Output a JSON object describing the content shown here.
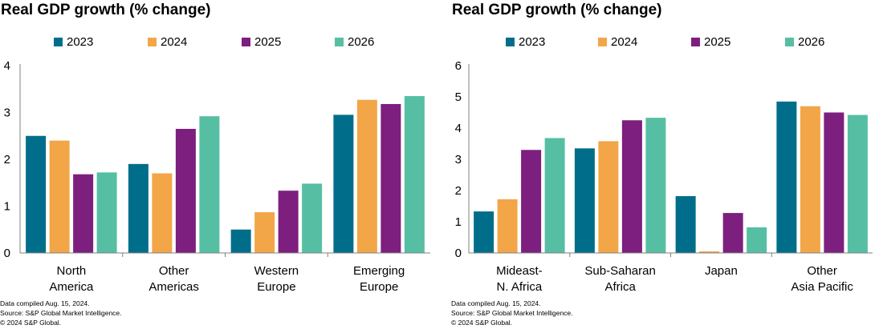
{
  "charts": [
    {
      "title": "Real GDP growth (% change)",
      "notes": [
        "Data compiled Aug. 15, 2024.",
        "Source: S&P Global Market Intelligence.",
        "© 2024 S&P Global."
      ]
    },
    {
      "title": "Real GDP growth (% change)",
      "notes": [
        "Data compiled Aug. 15, 2024.",
        "Source: S&P Global Market Intelligence.",
        "© 2024 S&P Global."
      ]
    }
  ],
  "chart_data": [
    {
      "type": "bar",
      "title": "Real GDP growth (% change)",
      "categories": [
        [
          "North",
          "America"
        ],
        [
          "Other",
          "Americas"
        ],
        [
          "Western",
          "Europe"
        ],
        [
          "Emerging",
          "Europe"
        ]
      ],
      "series": [
        {
          "name": "2023",
          "color": "#006e8a",
          "values": [
            2.5,
            1.9,
            0.5,
            2.95
          ]
        },
        {
          "name": "2024",
          "color": "#f2a648",
          "values": [
            2.4,
            1.7,
            0.87,
            3.27
          ]
        },
        {
          "name": "2025",
          "color": "#7d1f7e",
          "values": [
            1.68,
            2.65,
            1.33,
            3.18
          ]
        },
        {
          "name": "2026",
          "color": "#56bfa3",
          "values": [
            1.72,
            2.92,
            1.48,
            3.35
          ]
        }
      ],
      "ylim": [
        0,
        4
      ],
      "yticks": [
        0,
        1,
        2,
        3,
        4
      ],
      "legend": "top",
      "grid": false
    },
    {
      "type": "bar",
      "title": "Real GDP growth (% change)",
      "categories": [
        [
          "Mideast-",
          "N. Africa"
        ],
        [
          "Sub-Saharan",
          "Africa"
        ],
        [
          "Japan"
        ],
        [
          "Other",
          "Asia Pacific"
        ]
      ],
      "series": [
        {
          "name": "2023",
          "color": "#006e8a",
          "values": [
            1.33,
            3.35,
            1.82,
            4.85
          ]
        },
        {
          "name": "2024",
          "color": "#f2a648",
          "values": [
            1.72,
            3.58,
            0.05,
            4.7
          ]
        },
        {
          "name": "2025",
          "color": "#7d1f7e",
          "values": [
            3.3,
            4.25,
            1.28,
            4.5
          ]
        },
        {
          "name": "2026",
          "color": "#56bfa3",
          "values": [
            3.68,
            4.33,
            0.82,
            4.42
          ]
        }
      ],
      "ylim": [
        0,
        6
      ],
      "yticks": [
        0,
        1,
        2,
        3,
        4,
        5,
        6
      ],
      "legend": "top",
      "grid": false
    }
  ]
}
